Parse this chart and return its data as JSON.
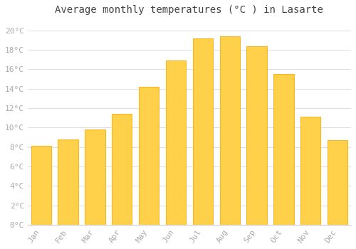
{
  "title": "Average monthly temperatures (°C ) in Lasarte",
  "months": [
    "Jan",
    "Feb",
    "Mar",
    "Apr",
    "May",
    "Jun",
    "Jul",
    "Aug",
    "Sep",
    "Oct",
    "Nov",
    "Dec"
  ],
  "temperatures": [
    8.1,
    8.8,
    9.8,
    11.4,
    14.2,
    16.9,
    19.2,
    19.4,
    18.4,
    15.5,
    11.1,
    8.7
  ],
  "bar_color_center": "#FFD04A",
  "bar_color_edge": "#FFA800",
  "background_color": "#FFFFFF",
  "grid_color": "#DDDDDD",
  "ytick_labels": [
    "0°C",
    "2°C",
    "4°C",
    "6°C",
    "8°C",
    "10°C",
    "12°C",
    "14°C",
    "16°C",
    "18°C",
    "20°C"
  ],
  "ytick_values": [
    0,
    2,
    4,
    6,
    8,
    10,
    12,
    14,
    16,
    18,
    20
  ],
  "ylim": [
    0,
    21
  ],
  "title_fontsize": 10,
  "tick_fontsize": 8,
  "tick_color": "#AAAAAA",
  "title_color": "#444444",
  "bar_width": 0.75
}
